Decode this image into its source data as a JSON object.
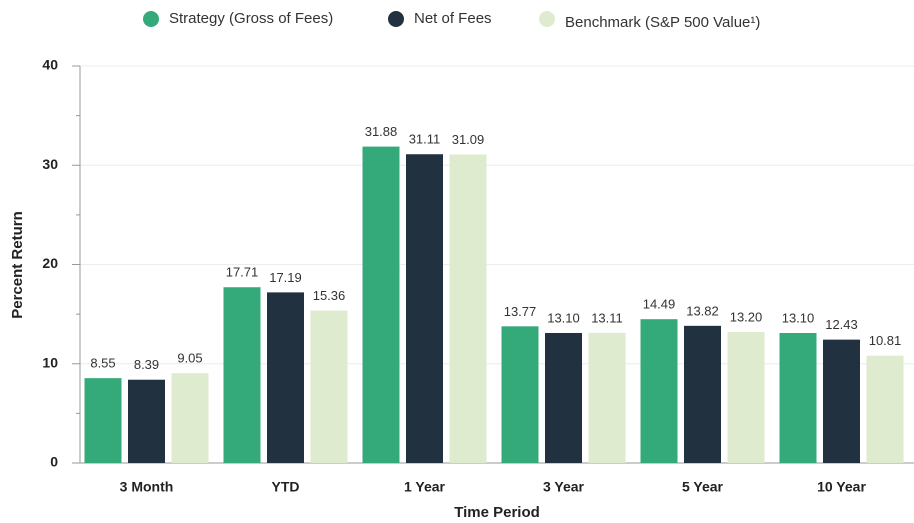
{
  "chart_data": {
    "type": "bar",
    "x_label": "Time Period",
    "y_label": "Percent Return",
    "categories": [
      "3 Month",
      "YTD",
      "1 Year",
      "3 Year",
      "5 Year",
      "10 Year"
    ],
    "series": [
      {
        "name": "Strategy (Gross of Fees)",
        "color": "#34aa7b",
        "values": [
          8.55,
          17.71,
          31.88,
          13.77,
          14.49,
          13.1
        ],
        "value_labels": [
          "8.55",
          "17.71",
          "31.88",
          "13.77",
          "14.49",
          "13.10"
        ]
      },
      {
        "name": "Net of Fees",
        "color": "#223140",
        "values": [
          8.39,
          17.19,
          31.11,
          13.1,
          13.82,
          12.43
        ],
        "value_labels": [
          "8.39",
          "17.19",
          "31.11",
          "13.10",
          "13.82",
          "12.43"
        ]
      },
      {
        "name": "Benchmark (S&P 500 Value¹)",
        "color": "#deebcf",
        "values": [
          9.05,
          15.36,
          31.09,
          13.11,
          13.2,
          10.81
        ],
        "value_labels": [
          "9.05",
          "15.36",
          "31.09",
          "13.11",
          "13.20",
          "10.81"
        ]
      }
    ],
    "ylim": [
      0,
      40
    ],
    "yticks": [
      0,
      10,
      20,
      30,
      40
    ],
    "yminorticks": [
      5,
      15,
      25,
      35
    ],
    "grid": true,
    "legend": "top"
  }
}
